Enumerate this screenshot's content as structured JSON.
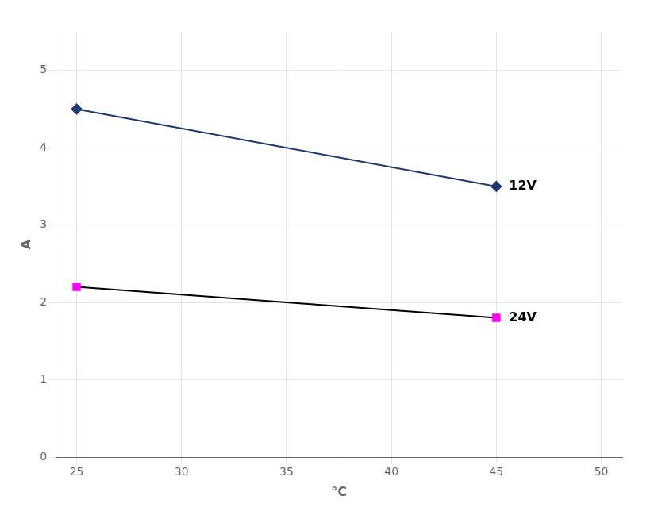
{
  "chart_data": {
    "type": "line",
    "x_label": "°C",
    "y_label": "A",
    "x": [
      25,
      45
    ],
    "series": [
      {
        "name": "12V",
        "color": "#1F3A6E",
        "marker": "diamond",
        "values": [
          4.5,
          3.5
        ]
      },
      {
        "name": "24V",
        "color": "#000000",
        "colors": [
          "#FF00FF",
          "#FF00FF"
        ],
        "marker": "square",
        "values": [
          2.2,
          1.8
        ]
      }
    ],
    "xlim": [
      24,
      51
    ],
    "xticks": [
      25,
      30,
      35,
      40,
      45,
      50
    ],
    "ylim": [
      0,
      5.5
    ],
    "yticks": [
      0,
      1,
      2,
      3,
      4,
      5
    ],
    "grid": true
  }
}
